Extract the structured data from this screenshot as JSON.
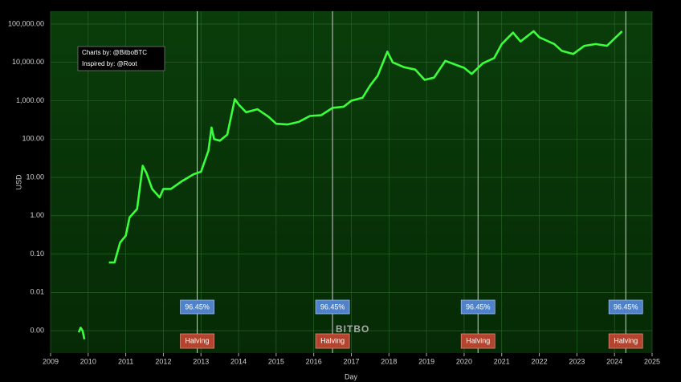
{
  "chart_data": {
    "type": "line",
    "x_label": "Day",
    "y_label": "USD",
    "ylog": true,
    "grid": true,
    "xlim": [
      2009,
      2025
    ],
    "ylim": [
      0.00026,
      216000
    ],
    "xticks": [
      2009,
      2010,
      2011,
      2012,
      2013,
      2014,
      2015,
      2016,
      2017,
      2018,
      2019,
      2020,
      2021,
      2022,
      2023,
      2024,
      2025
    ],
    "yticks": [
      {
        "value": 0.001,
        "label": "0.00"
      },
      {
        "value": 0.01,
        "label": "0.01"
      },
      {
        "value": 0.1,
        "label": "0.10"
      },
      {
        "value": 1,
        "label": "1.00"
      },
      {
        "value": 10,
        "label": "10.00"
      },
      {
        "value": 100,
        "label": "100.00"
      },
      {
        "value": 1000,
        "label": "1,000.00"
      },
      {
        "value": 10000,
        "label": "10,000.00"
      },
      {
        "value": 100000,
        "label": "100,000.00"
      }
    ],
    "series": [
      {
        "color": "#3cff3c",
        "x": [
          2009.75,
          2009.8,
          2009.85,
          2009.9,
          null,
          2010.55,
          2010.7,
          2010.85,
          2011.0,
          2011.1,
          2011.3,
          2011.45,
          2011.55,
          2011.7,
          2011.9,
          2012.0,
          2012.2,
          2012.5,
          2012.8,
          2013.0,
          2013.2,
          2013.28,
          2013.35,
          2013.5,
          2013.7,
          2013.9,
          2014.0,
          2014.2,
          2014.5,
          2014.8,
          2015.0,
          2015.3,
          2015.6,
          2015.9,
          2016.2,
          2016.5,
          2016.8,
          2017.0,
          2017.3,
          2017.5,
          2017.7,
          2017.96,
          2018.1,
          2018.4,
          2018.7,
          2018.95,
          2019.2,
          2019.5,
          2019.8,
          2020.0,
          2020.2,
          2020.5,
          2020.8,
          2021.0,
          2021.3,
          2021.5,
          2021.85,
          2022.0,
          2022.4,
          2022.6,
          2022.9,
          2023.2,
          2023.5,
          2023.8,
          2024.0,
          2024.2
        ],
        "values": [
          0.0009,
          0.0012,
          0.001,
          0.0006,
          null,
          0.06,
          0.06,
          0.2,
          0.3,
          0.9,
          1.5,
          20,
          13,
          5,
          3,
          5,
          5,
          8,
          12,
          14,
          50,
          200,
          100,
          90,
          130,
          1100,
          800,
          500,
          600,
          380,
          250,
          240,
          280,
          400,
          420,
          650,
          700,
          1000,
          1200,
          2500,
          4500,
          19000,
          10000,
          7500,
          6500,
          3500,
          4000,
          11000,
          8500,
          7200,
          5000,
          9500,
          13000,
          30000,
          60000,
          35000,
          65000,
          45000,
          30000,
          20000,
          16500,
          27000,
          30000,
          27000,
          42000,
          65000
        ]
      }
    ],
    "halvings": [
      {
        "x": 2012.9,
        "percent": "96.45%",
        "label": "Halving"
      },
      {
        "x": 2016.5,
        "percent": "96.45%",
        "label": "Halving"
      },
      {
        "x": 2020.37,
        "percent": "96.45%",
        "label": "Halving"
      },
      {
        "x": 2024.3,
        "percent": "96.45%",
        "label": "Halving"
      }
    ],
    "credits": [
      "Charts by: @BitboBTC",
      "Inspired by: @Root"
    ],
    "watermark": "BITBO"
  }
}
